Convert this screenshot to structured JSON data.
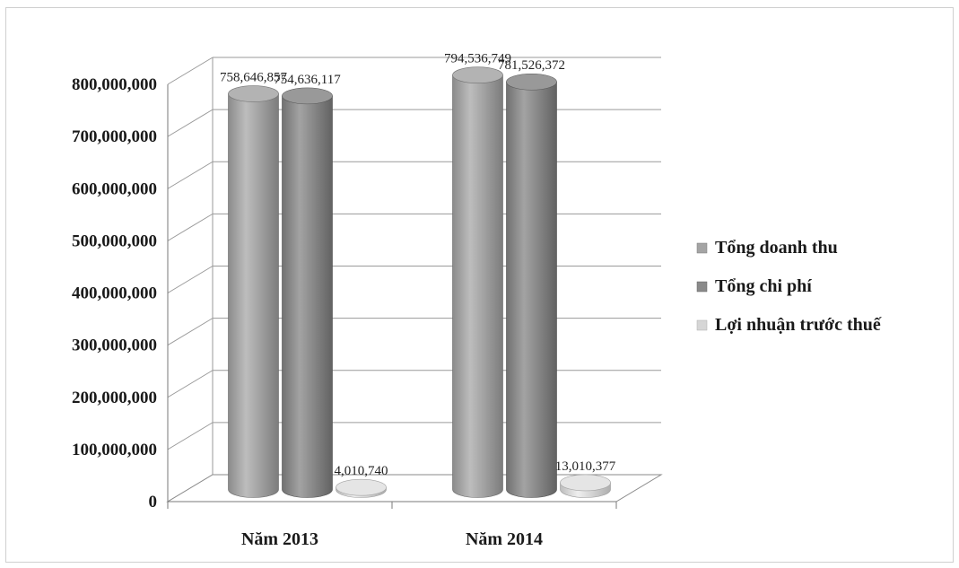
{
  "chart_data": {
    "type": "bar",
    "categories": [
      "Năm 2013",
      "Năm 2014"
    ],
    "series": [
      {
        "name": "Tổng doanh thu",
        "values": [
          758646857,
          794536749
        ],
        "labels": [
          "758,646,857",
          "794,536,749"
        ],
        "color": "#a4a4a4"
      },
      {
        "name": "Tổng chi phí",
        "values": [
          754636117,
          781526372
        ],
        "labels": [
          "754,636,117",
          "781,526,372"
        ],
        "color": "#8a8a8a"
      },
      {
        "name": "Lợi nhuận trước thuế",
        "values": [
          4010740,
          13010377
        ],
        "labels": [
          "4,010,740",
          "13,010,377"
        ],
        "color": "#d6d6d6"
      }
    ],
    "title": "",
    "xlabel": "",
    "ylabel": "",
    "ylim": [
      0,
      800000000
    ],
    "yticks": [
      0,
      100000000,
      200000000,
      300000000,
      400000000,
      500000000,
      600000000,
      700000000,
      800000000
    ],
    "ytick_labels": [
      "0",
      "100,000,000",
      "200,000,000",
      "300,000,000",
      "400,000,000",
      "500,000,000",
      "600,000,000",
      "700,000,000",
      "800,000,000"
    ],
    "grid": true,
    "legend_position": "right",
    "style": "3d-cylinder"
  }
}
